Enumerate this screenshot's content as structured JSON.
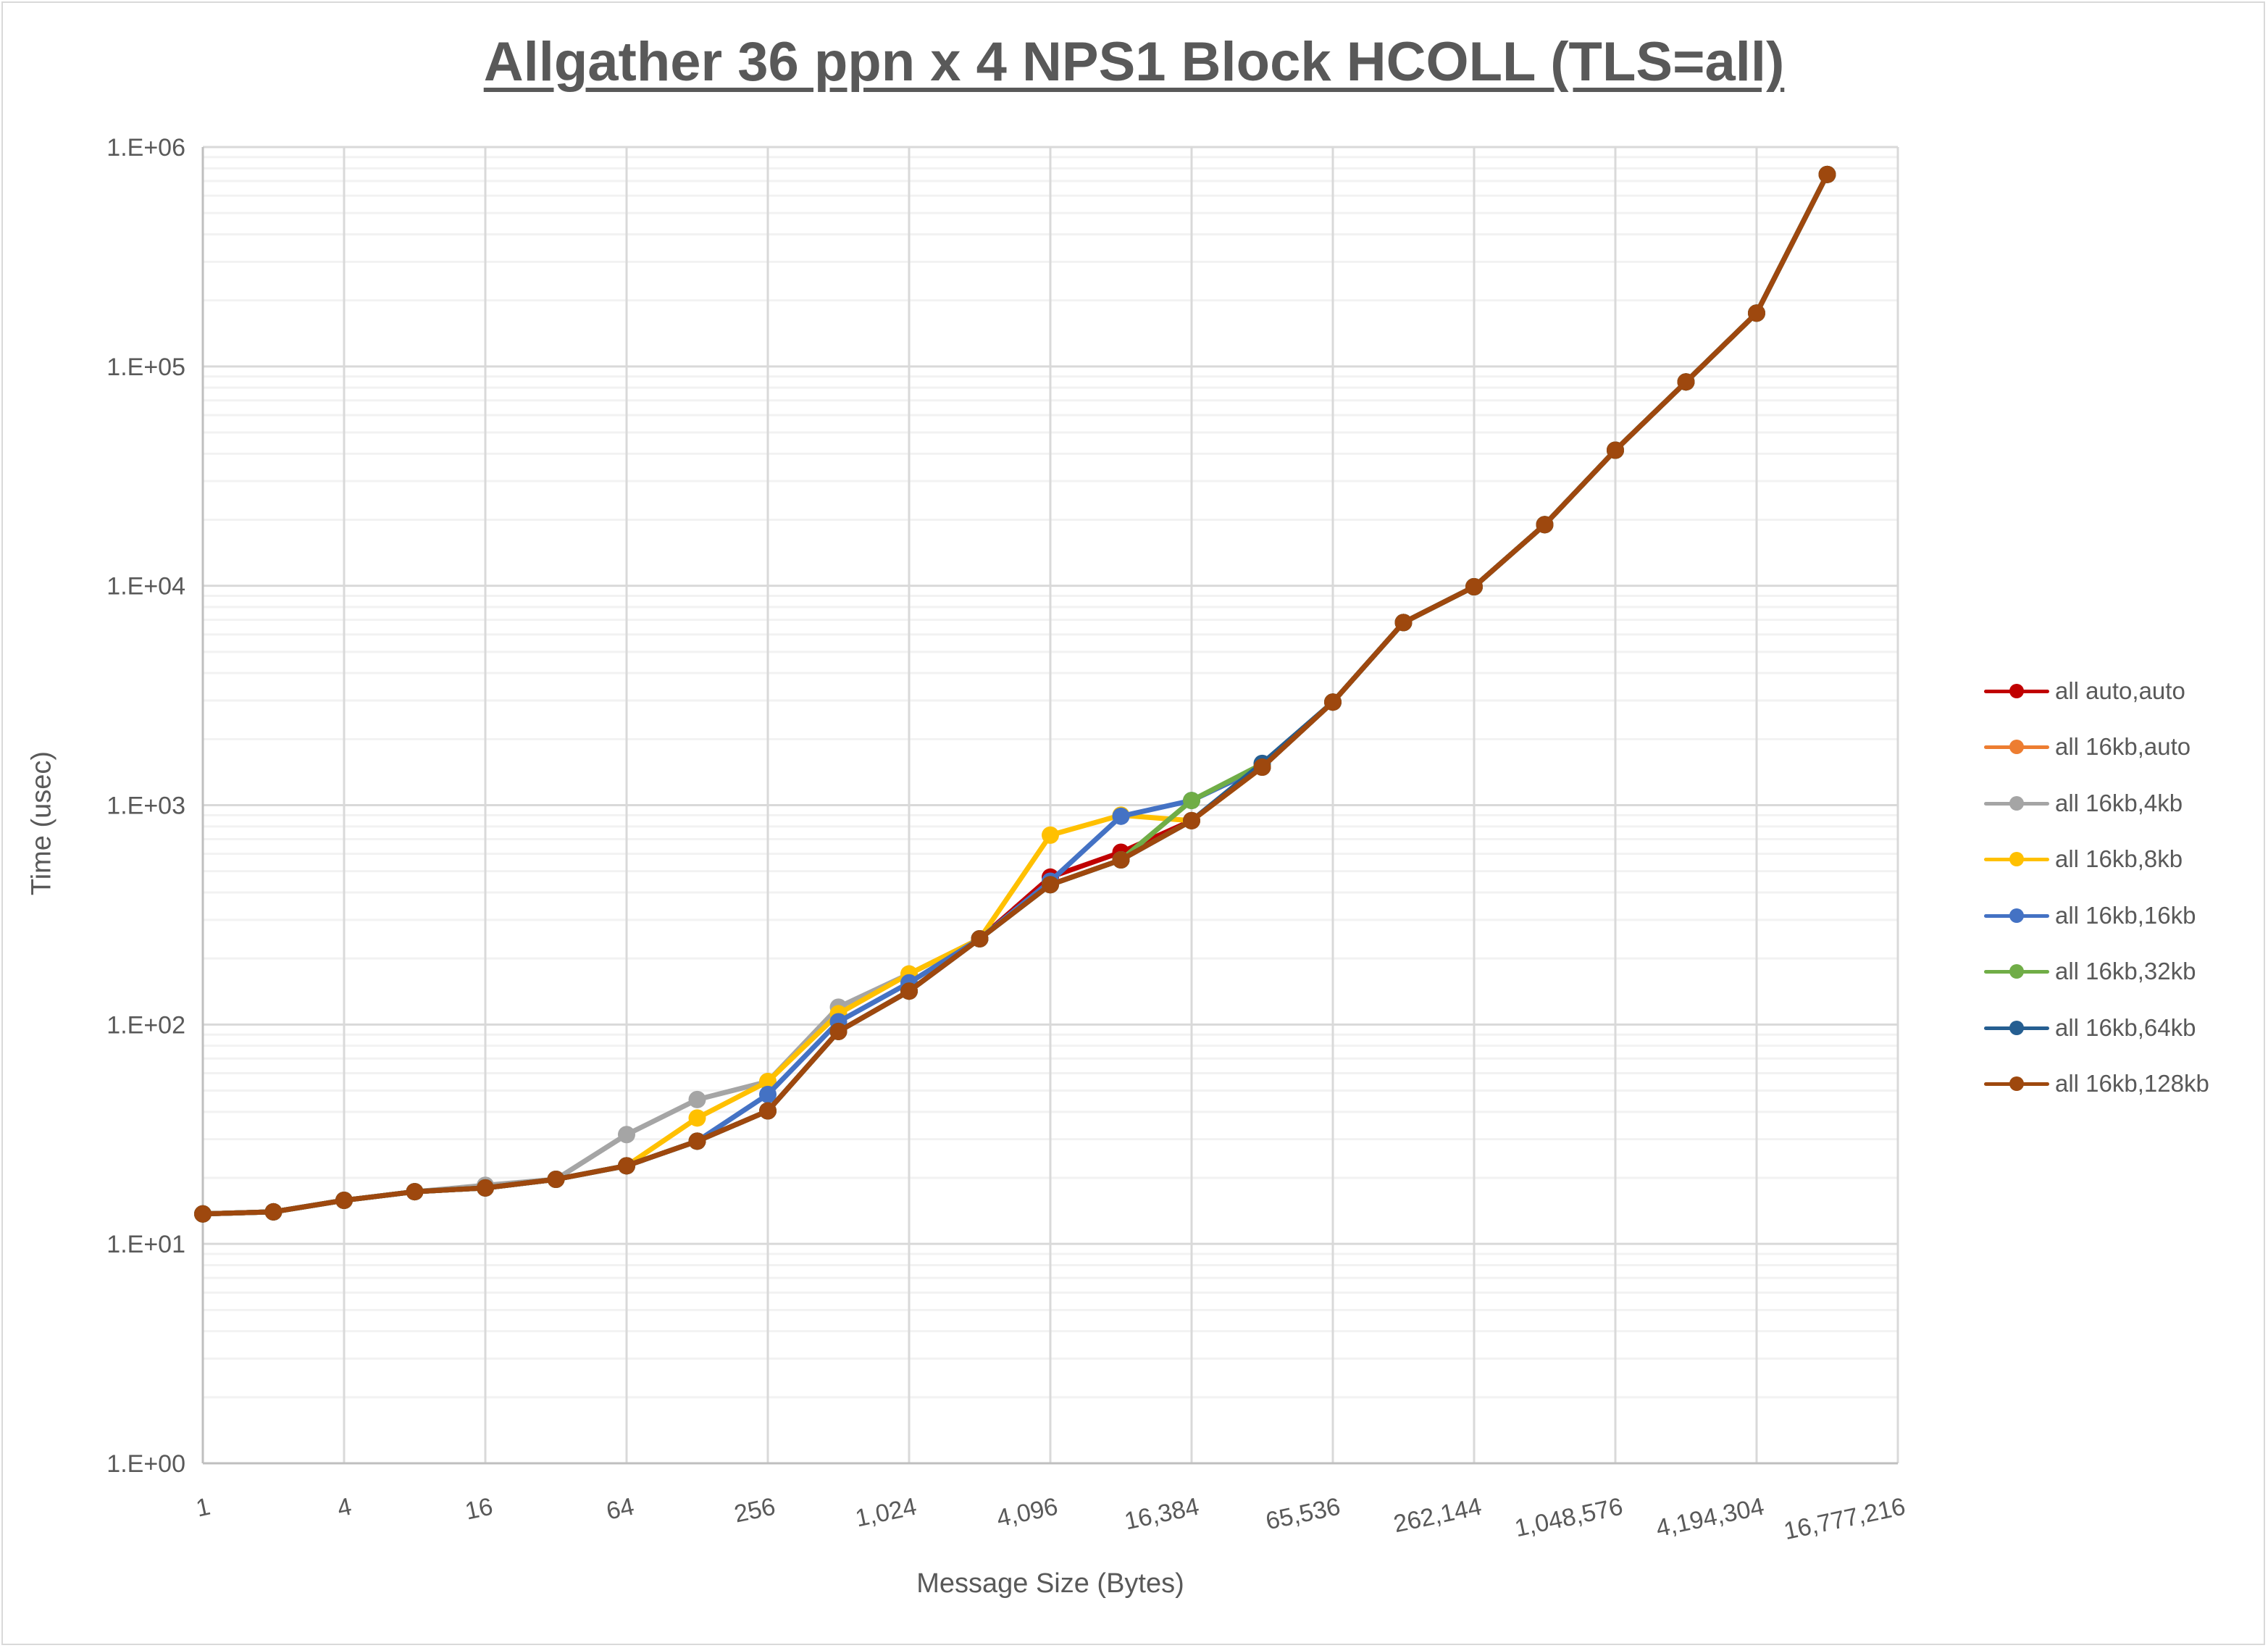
{
  "title": "Allgather 36 ppn x 4 NPS1 Block HCOLL (TLS=all)",
  "axes": {
    "ylabel": "Time (usec)",
    "xlabel": "Message Size (Bytes)",
    "yticks": [
      "1.E+06",
      "1.E+05",
      "1.E+04",
      "1.E+03",
      "1.E+02",
      "1.E+01",
      "1.E+00"
    ],
    "xticks": [
      "1",
      "4",
      "16",
      "64",
      "256",
      "1,024",
      "4,096",
      "16,384",
      "65,536",
      "262,144",
      "1,048,576",
      "4,194,304",
      "16,777,216"
    ]
  },
  "legend": [
    {
      "label": "all auto,auto",
      "color": "#C00000"
    },
    {
      "label": "all 16kb,auto",
      "color": "#ED7D31"
    },
    {
      "label": "all 16kb,4kb",
      "color": "#A5A5A5"
    },
    {
      "label": "all 16kb,8kb",
      "color": "#FFC000"
    },
    {
      "label": "all 16kb,16kb",
      "color": "#4472C4"
    },
    {
      "label": "all 16kb,32kb",
      "color": "#70AD47"
    },
    {
      "label": "all 16kb,64kb",
      "color": "#255E91"
    },
    {
      "label": "all 16kb,128kb",
      "color": "#9E480E"
    }
  ],
  "chart_data": {
    "type": "line",
    "title": "Allgather 36 ppn x 4 NPS1 Block HCOLL (TLS=all)",
    "xlabel": "Message Size (Bytes)",
    "ylabel": "Time (usec)",
    "xscale": "log2",
    "yscale": "log10",
    "ylim": [
      1,
      1000000
    ],
    "xlim": [
      1,
      16777216
    ],
    "grid": true,
    "legend_position": "right",
    "x": [
      1,
      2,
      4,
      8,
      16,
      32,
      64,
      128,
      256,
      512,
      1024,
      2048,
      4096,
      8192,
      16384,
      32768,
      65536,
      131072,
      262144,
      524288,
      1048576,
      2097152,
      4194304,
      8388608
    ],
    "series": [
      {
        "name": "all auto,auto",
        "color": "#C00000",
        "values": [
          13.7,
          14,
          15.8,
          17.3,
          18,
          19.7,
          22.7,
          29.4,
          40.4,
          93,
          142,
          246,
          470,
          610,
          850,
          1490,
          2950,
          6800,
          9900,
          19000,
          41500,
          85000,
          175000,
          750000
        ]
      },
      {
        "name": "all 16kb,auto",
        "color": "#ED7D31",
        "values": [
          13.7,
          14,
          15.8,
          17.3,
          18,
          19.7,
          22.7,
          29.4,
          40.4,
          93,
          142,
          246,
          434,
          563,
          850,
          1490,
          2950,
          6800,
          9900,
          19000,
          41500,
          85000,
          175000,
          750000
        ]
      },
      {
        "name": "all 16kb,4kb",
        "color": "#A5A5A5",
        "values": [
          13.7,
          14,
          15.8,
          17.3,
          18.5,
          19.7,
          31.5,
          45.5,
          55,
          120,
          170,
          246,
          434,
          563,
          850,
          1490,
          2950,
          6800,
          9900,
          19000,
          41500,
          85000,
          175000,
          750000
        ]
      },
      {
        "name": "all 16kb,8kb",
        "color": "#FFC000",
        "values": [
          13.7,
          14,
          15.8,
          17.3,
          18,
          19.7,
          22.7,
          37.5,
          55,
          112,
          170,
          246,
          730,
          900,
          850,
          1490,
          2950,
          6800,
          9900,
          19000,
          41500,
          85000,
          175000,
          750000
        ]
      },
      {
        "name": "all 16kb,16kb",
        "color": "#4472C4",
        "values": [
          13.7,
          14,
          15.8,
          17.3,
          18,
          19.7,
          22.7,
          29.4,
          48,
          103,
          155,
          246,
          450,
          890,
          1050,
          1490,
          2950,
          6800,
          9900,
          19000,
          41500,
          85000,
          175000,
          750000
        ]
      },
      {
        "name": "all 16kb,32kb",
        "color": "#70AD47",
        "values": [
          13.7,
          14,
          15.8,
          17.3,
          18,
          19.7,
          22.7,
          29.4,
          40.4,
          93,
          142,
          246,
          434,
          563,
          1050,
          1540,
          2950,
          6800,
          9900,
          19000,
          41500,
          85000,
          175000,
          750000
        ]
      },
      {
        "name": "all 16kb,64kb",
        "color": "#255E91",
        "values": [
          13.7,
          14,
          15.8,
          17.3,
          18,
          19.7,
          22.7,
          29.4,
          40.4,
          93,
          142,
          246,
          434,
          563,
          850,
          1550,
          2950,
          6800,
          9900,
          19000,
          41500,
          85000,
          175000,
          750000
        ]
      },
      {
        "name": "all 16kb,128kb",
        "color": "#9E480E",
        "values": [
          13.7,
          14,
          15.8,
          17.3,
          18,
          19.7,
          22.7,
          29.4,
          40.4,
          93,
          142,
          246,
          434,
          563,
          850,
          1490,
          2950,
          6800,
          9900,
          19000,
          41500,
          85000,
          175000,
          750000
        ]
      }
    ]
  }
}
